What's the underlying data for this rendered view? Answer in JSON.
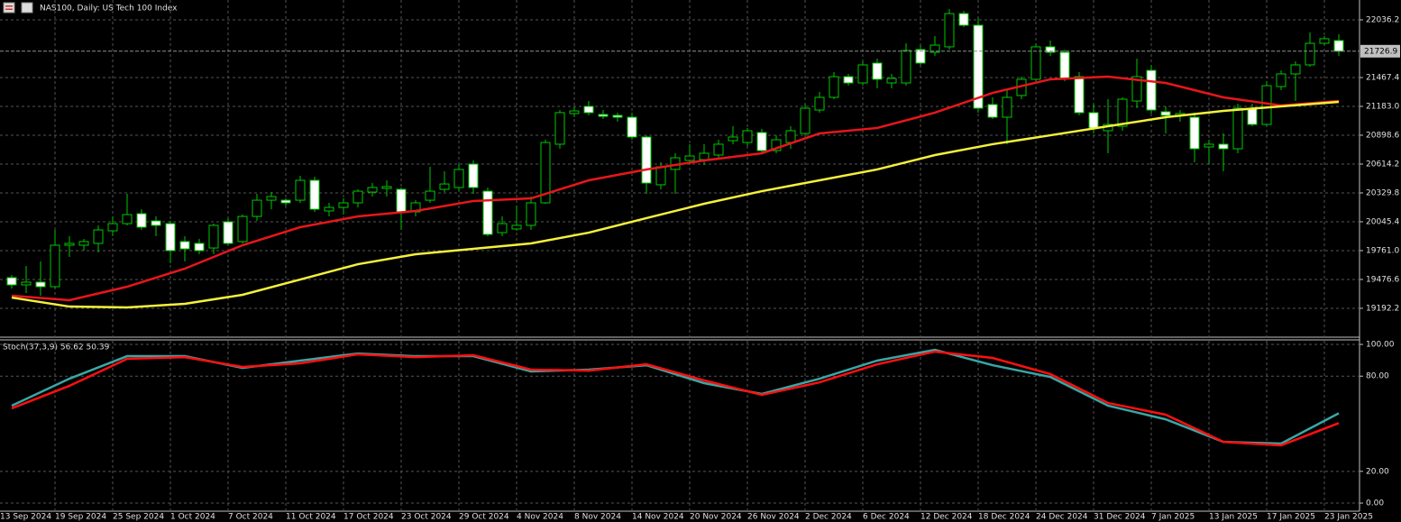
{
  "chart_data": [
    {
      "type": "candlestick",
      "title": "NAS100, Daily:  US Tech 100 Index",
      "categories": [
        "13 Sep 2024",
        null,
        null,
        null,
        "19 Sep 2024",
        null,
        null,
        null,
        "25 Sep 2024",
        null,
        null,
        null,
        "1 Oct 2024",
        null,
        null,
        null,
        "7 Oct 2024",
        null,
        null,
        null,
        "11 Oct 2024",
        null,
        null,
        null,
        "17 Oct 2024",
        null,
        null,
        null,
        "23 Oct 2024",
        null,
        null,
        null,
        "29 Oct 2024",
        null,
        null,
        null,
        "4 Nov 2024",
        null,
        null,
        null,
        "8 Nov 2024",
        null,
        null,
        null,
        "14 Nov 2024",
        null,
        null,
        null,
        "20 Nov 2024",
        null,
        null,
        null,
        "26 Nov 2024",
        null,
        null,
        null,
        "2 Dec 2024",
        null,
        null,
        null,
        "6 Dec 2024",
        null,
        null,
        null,
        "12 Dec 2024",
        null,
        null,
        null,
        "18 Dec 2024",
        null,
        null,
        null,
        "24 Dec 2024",
        null,
        null,
        null,
        "31 Dec 2024",
        null,
        null,
        null,
        "7 Jan 2025",
        null,
        null,
        null,
        "13 Jan 2025",
        null,
        null,
        null,
        "17 Jan 2025",
        null,
        null,
        null,
        "23 Jan 2025"
      ],
      "open": [
        19494,
        19423,
        19450,
        19405,
        19814,
        19814,
        19832,
        19956,
        20027,
        20125,
        20054,
        20027,
        19850,
        19832,
        19787,
        20045,
        19850,
        20098,
        20258,
        20258,
        20258,
        20454,
        20152,
        20187,
        20232,
        20338,
        20374,
        20365,
        20143,
        20258,
        20365,
        20383,
        20614,
        20347,
        19938,
        19974,
        20010,
        20232,
        20810,
        21112,
        21183,
        21103,
        21094,
        21076,
        20881,
        20410,
        20561,
        20650,
        20658,
        20703,
        20845,
        20827,
        20925,
        20747,
        20827,
        20916,
        21147,
        21272,
        21476,
        21414,
        21610,
        21414,
        21414,
        21743,
        21716,
        21770,
        22098,
        21983,
        21201,
        21076,
        21290,
        21450,
        21770,
        21716,
        21476,
        21121,
        20943,
        20987,
        21236,
        21538,
        21130,
        21094,
        21076,
        20783,
        20810,
        20765,
        21165,
        21005,
        21378,
        21503,
        21592,
        21805,
        21832
      ],
      "high": [
        19521,
        19610,
        19654,
        19965,
        19903,
        19876,
        20010,
        20098,
        20321,
        20169,
        20098,
        20054,
        19903,
        19876,
        20027,
        20081,
        20116,
        20321,
        20338,
        20276,
        20498,
        20490,
        20232,
        20276,
        20365,
        20427,
        20454,
        20383,
        20258,
        20587,
        20543,
        20614,
        20650,
        20383,
        20098,
        20205,
        20294,
        20854,
        21147,
        21183,
        21236,
        21147,
        21121,
        21121,
        20898,
        20632,
        20721,
        20810,
        20810,
        20854,
        20987,
        20970,
        20961,
        20898,
        20987,
        21210,
        21325,
        21521,
        21503,
        21627,
        21654,
        21503,
        21805,
        21787,
        21876,
        22143,
        22125,
        22054,
        21272,
        21343,
        21476,
        21805,
        21832,
        21743,
        21521,
        21210,
        21254,
        21272,
        21654,
        21592,
        21183,
        21147,
        21121,
        20854,
        20916,
        21210,
        21210,
        21432,
        21538,
        21627,
        21912,
        21876,
        21894
      ],
      "low": [
        19387,
        19343,
        19316,
        19387,
        19698,
        19761,
        19743,
        19903,
        20010,
        19965,
        19903,
        19636,
        19654,
        19725,
        19725,
        19814,
        19832,
        20054,
        20169,
        20205,
        20232,
        20143,
        20098,
        20116,
        20187,
        20294,
        20294,
        19965,
        20098,
        20232,
        20338,
        20347,
        20321,
        19903,
        19903,
        19956,
        19965,
        20223,
        20765,
        21076,
        21094,
        21058,
        21032,
        20854,
        20321,
        20365,
        20321,
        20614,
        20605,
        20667,
        20810,
        20792,
        20721,
        20721,
        20765,
        20898,
        21121,
        21254,
        21387,
        21387,
        21361,
        21361,
        21387,
        21592,
        21681,
        21743,
        21965,
        21121,
        21058,
        20810,
        21254,
        21432,
        21681,
        21432,
        21094,
        20916,
        20721,
        20943,
        21165,
        21112,
        20916,
        21032,
        20632,
        20614,
        20543,
        20721,
        20987,
        20987,
        21343,
        21236,
        21574,
        21787,
        21681
      ],
      "close": [
        19423,
        19450,
        19405,
        19814,
        19832,
        19850,
        19965,
        20027,
        20116,
        19992,
        20010,
        19761,
        19778,
        19761,
        20010,
        19832,
        20098,
        20258,
        20294,
        20232,
        20454,
        20169,
        20187,
        20232,
        20347,
        20383,
        20392,
        20143,
        20232,
        20347,
        20418,
        20561,
        20383,
        19921,
        20027,
        20010,
        20232,
        20827,
        21121,
        21138,
        21121,
        21085,
        21076,
        20881,
        20427,
        20587,
        20676,
        20694,
        20721,
        20810,
        20881,
        20943,
        20747,
        20854,
        20943,
        21165,
        21272,
        21476,
        21414,
        21592,
        21450,
        21458,
        21734,
        21610,
        21787,
        22098,
        21983,
        21165,
        21076,
        21272,
        21450,
        21770,
        21716,
        21458,
        21121,
        20970,
        21005,
        21254,
        21476,
        21147,
        21094,
        21112,
        20765,
        20810,
        20765,
        21165,
        21005,
        21387,
        21503,
        21592,
        21805,
        21850,
        21726.9
      ],
      "up_color": "#000000",
      "down_color": "#ffffff",
      "wick_color": "#00c800",
      "series": [
        {
          "color": "#e8161b",
          "x": [
            "13 Sep 2024",
            "19 Sep 2024",
            "25 Sep 2024",
            "1 Oct 2024",
            "7 Oct 2024",
            "11 Oct 2024",
            "17 Oct 2024",
            "23 Oct 2024",
            "29 Oct 2024",
            "4 Nov 2024",
            "8 Nov 2024",
            "14 Nov 2024",
            "20 Nov 2024",
            "26 Nov 2024",
            "2 Dec 2024",
            "6 Dec 2024",
            "12 Dec 2024",
            "18 Dec 2024",
            "24 Dec 2024",
            "31 Dec 2024",
            "7 Jan 2025",
            "13 Jan 2025",
            "17 Jan 2025",
            "23 Jan 2025"
          ],
          "values": [
            19316,
            19272,
            19405,
            19583,
            19814,
            19992,
            20098,
            20152,
            20250,
            20276,
            20454,
            20561,
            20650,
            20721,
            20916,
            20970,
            21121,
            21316,
            21450,
            21476,
            21414,
            21272,
            21192,
            21236
          ]
        },
        {
          "color": "#f5f03c",
          "x": [
            "13 Sep 2024",
            "19 Sep 2024",
            "25 Sep 2024",
            "1 Oct 2024",
            "7 Oct 2024",
            "11 Oct 2024",
            "17 Oct 2024",
            "23 Oct 2024",
            "29 Oct 2024",
            "4 Nov 2024",
            "8 Nov 2024",
            "14 Nov 2024",
            "20 Nov 2024",
            "26 Nov 2024",
            "2 Dec 2024",
            "6 Dec 2024",
            "12 Dec 2024",
            "18 Dec 2024",
            "24 Dec 2024",
            "31 Dec 2024",
            "7 Jan 2025",
            "13 Jan 2025",
            "17 Jan 2025",
            "23 Jan 2025"
          ],
          "values": [
            19298,
            19209,
            19201,
            19236,
            19325,
            19476,
            19627,
            19725,
            19778,
            19832,
            19938,
            20081,
            20223,
            20347,
            20454,
            20561,
            20703,
            20810,
            20898,
            20987,
            21076,
            21138,
            21183,
            21227
          ]
        }
      ],
      "current_price": 21726.9,
      "ylim": [
        18925.1,
        22231.8
      ],
      "yticks": [
        22036.2,
        21467.4,
        {
          "value": 21183,
          "label": "21183.0"
        },
        20898.6,
        20614.2,
        20329.8,
        20045.4,
        {
          "value": 19761,
          "label": "19761.0"
        },
        19476.6,
        19192.2
      ],
      "grid": true
    },
    {
      "type": "line",
      "title": "Stoch(37,3,9) 56.62 50.39",
      "series": [
        {
          "color": "#3aa6a6",
          "x": [
            "13 Sep 2024",
            "19 Sep 2024",
            "25 Sep 2024",
            "1 Oct 2024",
            "7 Oct 2024",
            "11 Oct 2024",
            "17 Oct 2024",
            "23 Oct 2024",
            "29 Oct 2024",
            "4 Nov 2024",
            "8 Nov 2024",
            "14 Nov 2024",
            "20 Nov 2024",
            "26 Nov 2024",
            "2 Dec 2024",
            "6 Dec 2024",
            "12 Dec 2024",
            "18 Dec 2024",
            "24 Dec 2024",
            "31 Dec 2024",
            "7 Jan 2025",
            "13 Jan 2025",
            "17 Jan 2025",
            "23 Jan 2025"
          ],
          "values": [
            61.4,
            78.4,
            92.6,
            92.6,
            85.2,
            89.8,
            94.3,
            92.6,
            92.6,
            83.0,
            84.1,
            86.9,
            75.6,
            68.8,
            78.4,
            89.8,
            96.6,
            86.9,
            79.5,
            61.4,
            52.8,
            38.6,
            37.5,
            56.62
          ]
        },
        {
          "color": "#ff1010",
          "x": [
            "13 Sep 2024",
            "19 Sep 2024",
            "25 Sep 2024",
            "1 Oct 2024",
            "7 Oct 2024",
            "11 Oct 2024",
            "17 Oct 2024",
            "23 Oct 2024",
            "29 Oct 2024",
            "4 Nov 2024",
            "8 Nov 2024",
            "14 Nov 2024",
            "20 Nov 2024",
            "26 Nov 2024",
            "2 Dec 2024",
            "6 Dec 2024",
            "12 Dec 2024",
            "18 Dec 2024",
            "24 Dec 2024",
            "31 Dec 2024",
            "7 Jan 2025",
            "13 Jan 2025",
            "17 Jan 2025",
            "23 Jan 2025"
          ],
          "values": [
            59.7,
            73.9,
            90.9,
            92.0,
            85.8,
            88.1,
            93.8,
            92.0,
            93.2,
            84.1,
            83.5,
            87.5,
            77.3,
            68.2,
            76.1,
            87.5,
            95.5,
            91.5,
            81.3,
            63.1,
            55.7,
            38.6,
            36.4,
            50.39
          ]
        }
      ],
      "ylim": [
        -5.1,
        104
      ],
      "yticks": [
        {
          "value": 100,
          "label": "100.00"
        },
        {
          "value": 80,
          "label": "80.00"
        },
        {
          "value": 20,
          "label": "20.00"
        },
        {
          "value": 0,
          "label": "0.00"
        }
      ],
      "grid": true
    }
  ]
}
